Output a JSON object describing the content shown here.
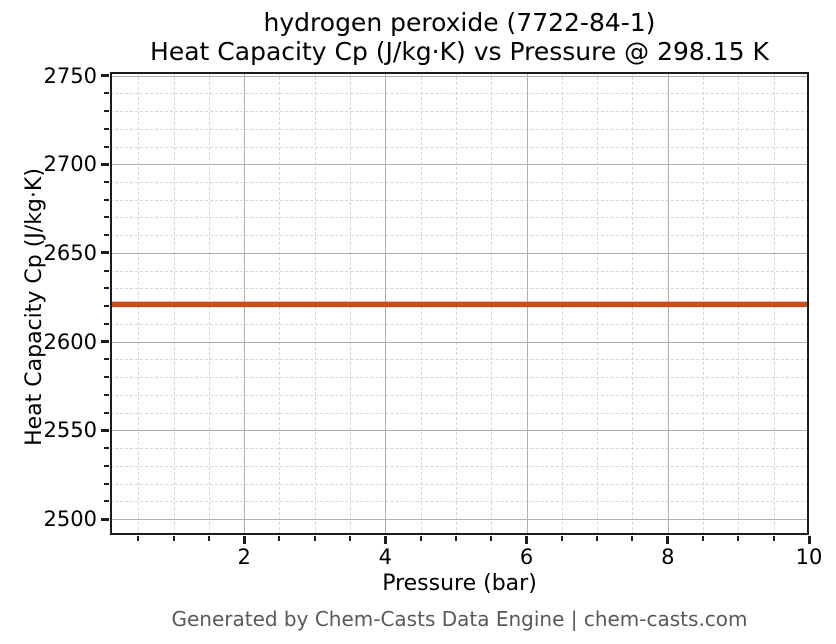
{
  "chart_data": {
    "type": "line",
    "title": "hydrogen peroxide (7722-84-1)",
    "subtitle": "Heat Capacity Cp (J/kg·K) vs Pressure @ 298.15 K",
    "xlabel": "Pressure (bar)",
    "ylabel": "Heat Capacity Cp (J/kg·K)",
    "xlim": [
      0.1,
      10
    ],
    "ylim": [
      2491,
      2752
    ],
    "xticks": [
      2,
      4,
      6,
      8,
      10
    ],
    "yticks": [
      2500,
      2550,
      2600,
      2650,
      2700,
      2750
    ],
    "x_minor_step": 0.5,
    "y_minor_step": 10,
    "grid": true,
    "legend": "none",
    "series": [
      {
        "name": "Heat Capacity Cp",
        "color": "#cc4c20",
        "x": [
          0.1,
          10
        ],
        "y": [
          2621,
          2621
        ]
      }
    ],
    "footer": "Generated by Chem-Casts Data Engine | chem-casts.com"
  },
  "colors": {
    "spine": "#1c1c1c",
    "grid_major": "#b0b0b0",
    "grid_minor": "#d6d6d6",
    "footer_text": "#595959",
    "background": "#ffffff"
  }
}
